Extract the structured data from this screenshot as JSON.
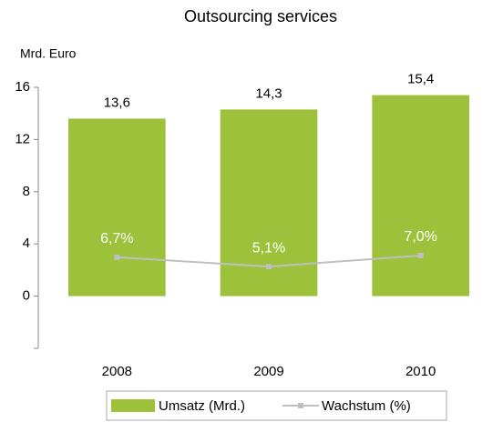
{
  "chart_data": {
    "type": "bar-line",
    "title": "Outsourcing services",
    "y_label": "Mrd. Euro",
    "categories": [
      "2008",
      "2009",
      "2010"
    ],
    "series": [
      {
        "name": "Umsatz (Mrd.)",
        "color": "#9dc13b",
        "type": "bar",
        "values": [
          13.6,
          14.3,
          15.4
        ],
        "value_labels": [
          "13,6",
          "14,3",
          "15,4"
        ]
      },
      {
        "name": "Wachstum (%)",
        "color": "#bfbfbf",
        "type": "line",
        "axis": "y2",
        "values": [
          6.7,
          5.1,
          7.0
        ],
        "value_labels": [
          "6,7%",
          "5,1%",
          "7,0%"
        ]
      }
    ],
    "ylim": [
      -4,
      16
    ],
    "yticks": [
      0,
      4,
      8,
      12,
      16
    ],
    "y2lim": [
      -9,
      36
    ],
    "legend": "bottom"
  }
}
